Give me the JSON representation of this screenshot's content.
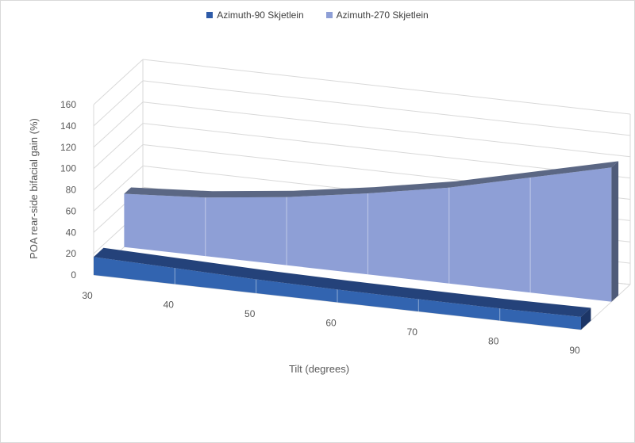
{
  "chart_data": {
    "type": "area",
    "style": "3d",
    "x": [
      30,
      40,
      50,
      60,
      70,
      80,
      90
    ],
    "series": [
      {
        "name": "Azimuth-90 Skjetlein",
        "values": [
          17,
          15,
          13,
          12,
          11.5,
          11.3,
          12
        ],
        "color": "#2e5ba8"
      },
      {
        "name": "Azimuth-270 Skjetlein",
        "values": [
          50,
          55,
          64,
          76,
          90,
          108,
          126
        ],
        "color": "#8e9fd6"
      }
    ],
    "xlabel": "Tilt  (degrees)",
    "ylabel": "POA rear-side bifacial gain (%)",
    "yticks": [
      0,
      20,
      40,
      60,
      80,
      100,
      120,
      140,
      160
    ],
    "ylim": [
      0,
      160
    ],
    "xlim": [
      30,
      90
    ],
    "grid": true,
    "legend_position": "top"
  }
}
